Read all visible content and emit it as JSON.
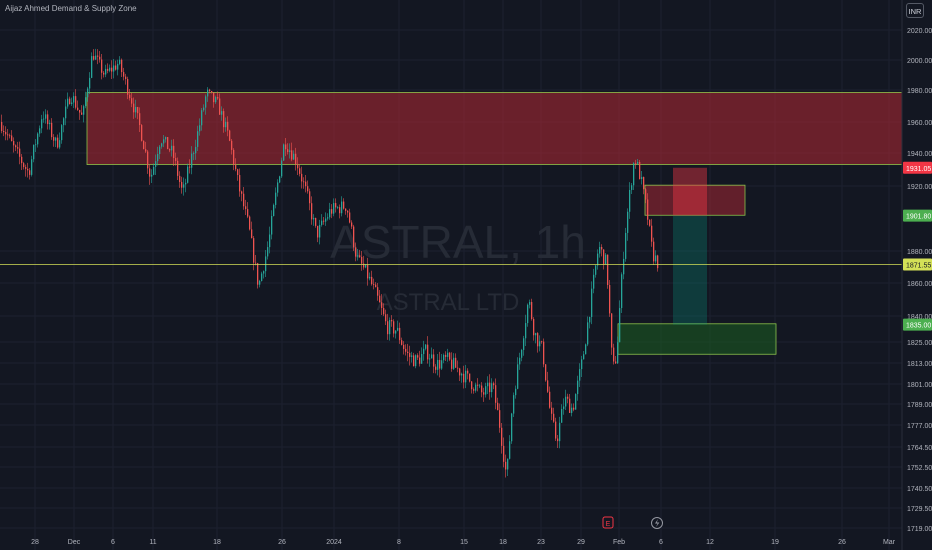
{
  "indicator_title": "Aijaz Ahmed Demand & Supply Zone",
  "currency": "INR",
  "watermark": {
    "symbol": "ASTRAL, 1h",
    "company": "ASTRAL LTD"
  },
  "colors": {
    "background": "#131722",
    "bull": "#26a69a",
    "bear": "#ef5350",
    "supply_fill": "#b22833",
    "demand_fill": "#1b5e20",
    "zone_border": "#8bc34a",
    "current_price": "#d4e157",
    "axis_text": "#b2b5be"
  },
  "chart_data": {
    "type": "candlestick",
    "title": "",
    "xlabel": "",
    "ylabel": "",
    "ylim": [
      1714,
      2027
    ],
    "y_ticks": [
      "2020.00",
      "2000.00",
      "1980.00",
      "1960.00",
      "1940.00",
      "1920.00",
      "1880.00",
      "1860.00",
      "1840.00",
      "1825.00",
      "1813.00",
      "1801.00",
      "1789.00",
      "1777.00",
      "1764.50",
      "1752.50",
      "1740.50",
      "1729.50",
      "1719.00"
    ],
    "x_ticks": [
      "28",
      "Dec",
      "6",
      "11",
      "18",
      "26",
      "2024",
      "8",
      "15",
      "18",
      "23",
      "29",
      "Feb",
      "6",
      "12",
      "19",
      "26",
      "Mar"
    ],
    "price_path": [
      [
        0,
        1960
      ],
      [
        14,
        1942
      ],
      [
        28,
        1928
      ],
      [
        42,
        1966
      ],
      [
        56,
        1945
      ],
      [
        70,
        1978
      ],
      [
        82,
        1962
      ],
      [
        92,
        2005
      ],
      [
        104,
        1990
      ],
      [
        118,
        1998
      ],
      [
        132,
        1972
      ],
      [
        140,
        1955
      ],
      [
        150,
        1925
      ],
      [
        160,
        1950
      ],
      [
        172,
        1940
      ],
      [
        182,
        1915
      ],
      [
        196,
        1950
      ],
      [
        206,
        1978
      ],
      [
        218,
        1970
      ],
      [
        228,
        1950
      ],
      [
        238,
        1920
      ],
      [
        248,
        1895
      ],
      [
        258,
        1858
      ],
      [
        268,
        1885
      ],
      [
        276,
        1918
      ],
      [
        284,
        1948
      ],
      [
        296,
        1935
      ],
      [
        306,
        1915
      ],
      [
        316,
        1890
      ],
      [
        330,
        1905
      ],
      [
        346,
        1908
      ],
      [
        356,
        1876
      ],
      [
        366,
        1866
      ],
      [
        376,
        1852
      ],
      [
        386,
        1834
      ],
      [
        396,
        1832
      ],
      [
        406,
        1818
      ],
      [
        416,
        1814
      ],
      [
        426,
        1820
      ],
      [
        436,
        1812
      ],
      [
        446,
        1815
      ],
      [
        460,
        1808
      ],
      [
        472,
        1801
      ],
      [
        482,
        1795
      ],
      [
        492,
        1800
      ],
      [
        500,
        1774
      ],
      [
        506,
        1746
      ],
      [
        512,
        1792
      ],
      [
        520,
        1820
      ],
      [
        528,
        1850
      ],
      [
        534,
        1830
      ],
      [
        542,
        1820
      ],
      [
        550,
        1782
      ],
      [
        556,
        1768
      ],
      [
        564,
        1792
      ],
      [
        572,
        1786
      ],
      [
        582,
        1815
      ],
      [
        590,
        1848
      ],
      [
        598,
        1883
      ],
      [
        606,
        1872
      ],
      [
        612,
        1808
      ],
      [
        616,
        1818
      ],
      [
        624,
        1888
      ],
      [
        630,
        1920
      ],
      [
        634,
        1938
      ],
      [
        640,
        1925
      ],
      [
        646,
        1905
      ],
      [
        652,
        1878
      ],
      [
        658,
        1872
      ]
    ],
    "current_price": 1871.55,
    "price_labels": [
      {
        "value": 1931.05,
        "text": "1931.05",
        "color": "#f23645"
      },
      {
        "value": 1901.8,
        "text": "1901.80",
        "color": "#4caf50"
      },
      {
        "value": 1871.55,
        "text": "1871.55",
        "color": "#d4e157"
      },
      {
        "value": 1835.0,
        "text": "1835.00",
        "color": "#4caf50"
      }
    ],
    "zones": [
      {
        "type": "supply",
        "top": 1978.5,
        "bottom": 1933.0
      },
      {
        "type": "supply",
        "top": 1920.5,
        "bottom": 1902.0
      },
      {
        "type": "demand",
        "top": 1835.5,
        "bottom": 1818.0
      }
    ],
    "short_position": {
      "entry": 1901.8,
      "stop": 1931.05,
      "target": 1835.0
    }
  }
}
